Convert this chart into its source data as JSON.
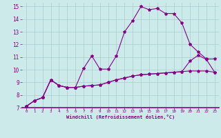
{
  "background_color": "#cceaea",
  "grid_color": "#aacccc",
  "line_color": "#880088",
  "xlabel": "Windchill (Refroidissement éolien,°C)",
  "xlabel_color": "#880088",
  "xtick_color": "#880088",
  "ytick_color": "#880088",
  "xlim": [
    -0.5,
    23.5
  ],
  "ylim": [
    7,
    15.3
  ],
  "yticks": [
    7,
    8,
    9,
    10,
    11,
    12,
    13,
    14,
    15
  ],
  "xticks": [
    0,
    1,
    2,
    3,
    4,
    5,
    6,
    7,
    8,
    9,
    10,
    11,
    12,
    13,
    14,
    15,
    16,
    17,
    18,
    19,
    20,
    21,
    22,
    23
  ],
  "line1_x": [
    0,
    1,
    2,
    3,
    4,
    5,
    6,
    7,
    8,
    9,
    10,
    11,
    12,
    13,
    14,
    15,
    16,
    17,
    18,
    19,
    20,
    21,
    22,
    23
  ],
  "line1_y": [
    7.1,
    7.55,
    7.8,
    9.2,
    8.75,
    8.6,
    8.6,
    10.1,
    11.1,
    10.05,
    10.05,
    11.1,
    13.0,
    13.9,
    15.0,
    14.75,
    14.85,
    14.45,
    14.45,
    13.7,
    12.0,
    11.4,
    10.85,
    10.85
  ],
  "line2_x": [
    0,
    1,
    2,
    3,
    4,
    5,
    6,
    7,
    8,
    9,
    10,
    11,
    12,
    13,
    14,
    15,
    16,
    17,
    18,
    19,
    20,
    21,
    22,
    23
  ],
  "line2_y": [
    7.1,
    7.55,
    7.8,
    9.2,
    8.75,
    8.6,
    8.6,
    8.7,
    8.75,
    8.8,
    9.0,
    9.2,
    9.35,
    9.5,
    9.6,
    9.65,
    9.7,
    9.75,
    9.8,
    9.85,
    10.7,
    11.15,
    10.8,
    9.8
  ],
  "line3_x": [
    0,
    1,
    2,
    3,
    4,
    5,
    6,
    7,
    8,
    9,
    10,
    11,
    12,
    13,
    14,
    15,
    16,
    17,
    18,
    19,
    20,
    21,
    22,
    23
  ],
  "line3_y": [
    7.1,
    7.55,
    7.8,
    9.2,
    8.75,
    8.6,
    8.6,
    8.7,
    8.75,
    8.8,
    9.0,
    9.2,
    9.35,
    9.5,
    9.6,
    9.65,
    9.7,
    9.75,
    9.8,
    9.85,
    9.9,
    9.9,
    9.9,
    9.8
  ],
  "marker": "*",
  "markersize": 3.0,
  "linewidth": 0.8
}
